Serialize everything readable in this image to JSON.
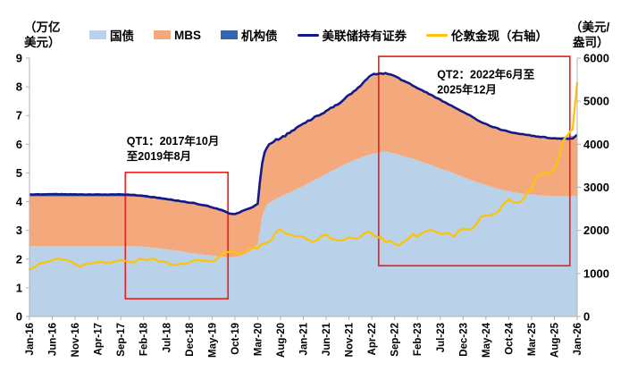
{
  "axes_display": {
    "left": [
      "（万亿",
      "美元）"
    ],
    "right": [
      "（美元/",
      "盎司）"
    ]
  },
  "chart_data": {
    "type": "area",
    "subtype": "stacked-area-with-lines",
    "x_unit": "months since Jan-2016",
    "x_tick_months": [
      0,
      5,
      10,
      15,
      20,
      25,
      30,
      35,
      40,
      45,
      50,
      55,
      60,
      65,
      70,
      75,
      80,
      85,
      90,
      95,
      100,
      105,
      110,
      115,
      120
    ],
    "x_tick_labels": [
      "Jan-16",
      "Jun-16",
      "Nov-16",
      "Apr-17",
      "Sep-17",
      "Feb-18",
      "Jul-18",
      "Dec-18",
      "May-19",
      "Oct-19",
      "Mar-20",
      "Aug-20",
      "Jan-21",
      "Jun-21",
      "Nov-21",
      "Apr-22",
      "Sep-22",
      "Feb-23",
      "Jul-23",
      "Dec-23",
      "May-24",
      "Oct-24",
      "Mar-25",
      "Aug-25",
      "Jan-26"
    ],
    "left_axis": {
      "label": "（万亿美元）",
      "min": 0,
      "max": 9,
      "tick_step": 1
    },
    "right_axis": {
      "label": "（美元/盎司）",
      "min": 0,
      "max": 6000,
      "tick_step": 1000
    },
    "grid": false,
    "legend_position": "top",
    "annotation_color": "#e62622",
    "annotations": [
      {
        "id": "qt1",
        "lines": [
          "QT1：2017年10月",
          "至2019年8月"
        ],
        "box": {
          "m0": 21,
          "m1": 43.5,
          "v0": 0.62,
          "v1": 5.02
        },
        "label_pos": {
          "m": 21.3,
          "v": 6.35
        }
      },
      {
        "id": "qt2",
        "lines": [
          "QT2：2022年6月至",
          "2025年12月"
        ],
        "box": {
          "m0": 76.5,
          "m1": 118.4,
          "v0": 1.77,
          "v1": 9.06
        },
        "label_pos": {
          "m": 89.3,
          "v": 8.68
        }
      }
    ],
    "series": [
      {
        "id": "treasury",
        "name": "国债",
        "kind": "area",
        "axis": "left",
        "color": "#b9d2ea",
        "points": [
          [
            0,
            2.46
          ],
          [
            6,
            2.46
          ],
          [
            12,
            2.46
          ],
          [
            18,
            2.46
          ],
          [
            21,
            2.46
          ],
          [
            24,
            2.44
          ],
          [
            28,
            2.38
          ],
          [
            32,
            2.3
          ],
          [
            36,
            2.2
          ],
          [
            40,
            2.12
          ],
          [
            44,
            2.06
          ],
          [
            46,
            2.1
          ],
          [
            48,
            2.25
          ],
          [
            49,
            2.35
          ],
          [
            50,
            2.5
          ],
          [
            50.5,
            3.0
          ],
          [
            51,
            3.5
          ],
          [
            52,
            3.9
          ],
          [
            53,
            4.0
          ],
          [
            54,
            4.1
          ],
          [
            56,
            4.25
          ],
          [
            58,
            4.4
          ],
          [
            60,
            4.55
          ],
          [
            63,
            4.8
          ],
          [
            66,
            5.05
          ],
          [
            69,
            5.3
          ],
          [
            72,
            5.5
          ],
          [
            74,
            5.62
          ],
          [
            76,
            5.7
          ],
          [
            78,
            5.75
          ],
          [
            80,
            5.68
          ],
          [
            82,
            5.58
          ],
          [
            84,
            5.5
          ],
          [
            86,
            5.38
          ],
          [
            88,
            5.28
          ],
          [
            90,
            5.15
          ],
          [
            92,
            5.05
          ],
          [
            94,
            4.92
          ],
          [
            96,
            4.8
          ],
          [
            98,
            4.68
          ],
          [
            100,
            4.58
          ],
          [
            102,
            4.48
          ],
          [
            104,
            4.4
          ],
          [
            106,
            4.33
          ],
          [
            108,
            4.28
          ],
          [
            110,
            4.25
          ],
          [
            112,
            4.22
          ],
          [
            114,
            4.2
          ],
          [
            117,
            4.19
          ],
          [
            120,
            4.2
          ]
        ]
      },
      {
        "id": "mbs",
        "name": "MBS",
        "kind": "area",
        "axis": "left",
        "color": "#f3a97c",
        "points": [
          [
            0,
            1.73
          ],
          [
            12,
            1.73
          ],
          [
            21,
            1.73
          ],
          [
            24,
            1.73
          ],
          [
            28,
            1.71
          ],
          [
            32,
            1.7
          ],
          [
            36,
            1.71
          ],
          [
            40,
            1.65
          ],
          [
            44,
            1.49
          ],
          [
            48,
            1.49
          ],
          [
            50,
            1.43
          ],
          [
            51,
            1.75
          ],
          [
            52,
            1.99
          ],
          [
            54,
            2.04
          ],
          [
            57,
            2.1
          ],
          [
            60,
            2.16
          ],
          [
            66,
            2.19
          ],
          [
            69,
            2.3
          ],
          [
            72,
            2.44
          ],
          [
            76,
            2.74
          ],
          [
            78,
            2.71
          ],
          [
            84,
            2.54
          ],
          [
            90,
            2.39
          ],
          [
            96,
            2.24
          ],
          [
            102,
            2.09
          ],
          [
            108,
            2.06
          ],
          [
            114,
            2.01
          ],
          [
            120,
            2.1
          ]
        ]
      },
      {
        "id": "agency",
        "name": "机构债",
        "kind": "area",
        "axis": "left",
        "color": "#3565b0",
        "points": [
          [
            0,
            0.065
          ],
          [
            24,
            0.055
          ],
          [
            36,
            0.04
          ],
          [
            44,
            0.03
          ],
          [
            48,
            0.02
          ],
          [
            52,
            0.012
          ],
          [
            60,
            0.01
          ],
          [
            120,
            0.008
          ]
        ]
      },
      {
        "id": "total",
        "name": "美联储持有证券",
        "kind": "line",
        "axis": "left",
        "color": "#131a87",
        "points": [
          [
            0,
            4.25
          ],
          [
            6,
            4.26
          ],
          [
            12,
            4.25
          ],
          [
            18,
            4.25
          ],
          [
            21,
            4.25
          ],
          [
            24,
            4.22
          ],
          [
            27,
            4.16
          ],
          [
            30,
            4.1
          ],
          [
            33,
            4.02
          ],
          [
            36,
            3.95
          ],
          [
            39,
            3.85
          ],
          [
            42,
            3.72
          ],
          [
            44,
            3.58
          ],
          [
            45,
            3.56
          ],
          [
            46,
            3.62
          ],
          [
            47,
            3.7
          ],
          [
            48,
            3.76
          ],
          [
            49,
            3.82
          ],
          [
            50,
            3.95
          ],
          [
            50.5,
            4.7
          ],
          [
            51,
            5.35
          ],
          [
            51.5,
            5.7
          ],
          [
            52,
            5.9
          ],
          [
            53,
            6.05
          ],
          [
            54,
            6.15
          ],
          [
            56,
            6.3
          ],
          [
            58,
            6.5
          ],
          [
            60,
            6.72
          ],
          [
            62,
            6.9
          ],
          [
            64,
            7.05
          ],
          [
            66,
            7.25
          ],
          [
            68,
            7.45
          ],
          [
            70,
            7.7
          ],
          [
            72,
            7.95
          ],
          [
            73,
            8.15
          ],
          [
            74,
            8.3
          ],
          [
            75,
            8.4
          ],
          [
            76,
            8.45
          ],
          [
            78,
            8.47
          ],
          [
            80,
            8.38
          ],
          [
            82,
            8.2
          ],
          [
            84,
            8.05
          ],
          [
            86,
            7.88
          ],
          [
            88,
            7.72
          ],
          [
            90,
            7.55
          ],
          [
            92,
            7.38
          ],
          [
            94,
            7.2
          ],
          [
            96,
            7.05
          ],
          [
            98,
            6.85
          ],
          [
            100,
            6.7
          ],
          [
            102,
            6.58
          ],
          [
            104,
            6.48
          ],
          [
            106,
            6.4
          ],
          [
            108,
            6.35
          ],
          [
            110,
            6.3
          ],
          [
            112,
            6.26
          ],
          [
            114,
            6.22
          ],
          [
            116,
            6.2
          ],
          [
            118,
            6.19
          ],
          [
            119,
            6.2
          ],
          [
            120,
            6.32
          ]
        ]
      },
      {
        "id": "gold",
        "name": "伦敦金现（右轴）",
        "kind": "line",
        "axis": "right",
        "color": "#fcc30d",
        "points": [
          [
            0,
            1090
          ],
          [
            1,
            1130
          ],
          [
            2,
            1235
          ],
          [
            3,
            1245
          ],
          [
            4,
            1265
          ],
          [
            5,
            1320
          ],
          [
            6,
            1340
          ],
          [
            7,
            1330
          ],
          [
            8,
            1325
          ],
          [
            9,
            1270
          ],
          [
            10,
            1225
          ],
          [
            11,
            1150
          ],
          [
            12,
            1195
          ],
          [
            13,
            1235
          ],
          [
            14,
            1250
          ],
          [
            15,
            1255
          ],
          [
            16,
            1265
          ],
          [
            17,
            1255
          ],
          [
            18,
            1240
          ],
          [
            19,
            1290
          ],
          [
            20,
            1315
          ],
          [
            21,
            1280
          ],
          [
            22,
            1275
          ],
          [
            23,
            1265
          ],
          [
            24,
            1335
          ],
          [
            25,
            1330
          ],
          [
            26,
            1320
          ],
          [
            27,
            1340
          ],
          [
            28,
            1300
          ],
          [
            29,
            1280
          ],
          [
            30,
            1250
          ],
          [
            31,
            1210
          ],
          [
            32,
            1195
          ],
          [
            33,
            1220
          ],
          [
            34,
            1220
          ],
          [
            35,
            1250
          ],
          [
            36,
            1290
          ],
          [
            37,
            1315
          ],
          [
            38,
            1300
          ],
          [
            39,
            1290
          ],
          [
            40,
            1280
          ],
          [
            41,
            1330
          ],
          [
            42,
            1415
          ],
          [
            43,
            1500
          ],
          [
            44,
            1510
          ],
          [
            45,
            1490
          ],
          [
            46,
            1465
          ],
          [
            47,
            1480
          ],
          [
            48,
            1560
          ],
          [
            49,
            1600
          ],
          [
            50,
            1580
          ],
          [
            51,
            1690
          ],
          [
            52,
            1720
          ],
          [
            53,
            1770
          ],
          [
            54,
            1960
          ],
          [
            55,
            2030
          ],
          [
            56,
            1940
          ],
          [
            57,
            1900
          ],
          [
            58,
            1875
          ],
          [
            59,
            1860
          ],
          [
            60,
            1850
          ],
          [
            61,
            1790
          ],
          [
            62,
            1720
          ],
          [
            63,
            1770
          ],
          [
            64,
            1880
          ],
          [
            65,
            1900
          ],
          [
            66,
            1810
          ],
          [
            67,
            1790
          ],
          [
            68,
            1760
          ],
          [
            69,
            1780
          ],
          [
            70,
            1850
          ],
          [
            71,
            1800
          ],
          [
            72,
            1820
          ],
          [
            73,
            1900
          ],
          [
            74,
            1960
          ],
          [
            75,
            1930
          ],
          [
            76,
            1850
          ],
          [
            77,
            1830
          ],
          [
            78,
            1740
          ],
          [
            79,
            1760
          ],
          [
            80,
            1670
          ],
          [
            81,
            1650
          ],
          [
            82,
            1750
          ],
          [
            83,
            1800
          ],
          [
            84,
            1920
          ],
          [
            85,
            1860
          ],
          [
            86,
            1930
          ],
          [
            87,
            1990
          ],
          [
            88,
            2010
          ],
          [
            89,
            1960
          ],
          [
            90,
            1925
          ],
          [
            91,
            1920
          ],
          [
            92,
            1925
          ],
          [
            93,
            1860
          ],
          [
            94,
            1990
          ],
          [
            95,
            2040
          ],
          [
            96,
            2030
          ],
          [
            97,
            2040
          ],
          [
            98,
            2160
          ],
          [
            99,
            2330
          ],
          [
            100,
            2340
          ],
          [
            101,
            2330
          ],
          [
            102,
            2400
          ],
          [
            103,
            2470
          ],
          [
            104,
            2630
          ],
          [
            105,
            2730
          ],
          [
            106,
            2650
          ],
          [
            107,
            2630
          ],
          [
            108,
            2700
          ],
          [
            109,
            2880
          ],
          [
            110,
            2940
          ],
          [
            111,
            3250
          ],
          [
            112,
            3300
          ],
          [
            113,
            3330
          ],
          [
            114,
            3340
          ],
          [
            115,
            3400
          ],
          [
            116,
            3700
          ],
          [
            117,
            4100
          ],
          [
            118,
            4220
          ],
          [
            119,
            4350
          ],
          [
            120,
            5430
          ]
        ]
      }
    ]
  }
}
